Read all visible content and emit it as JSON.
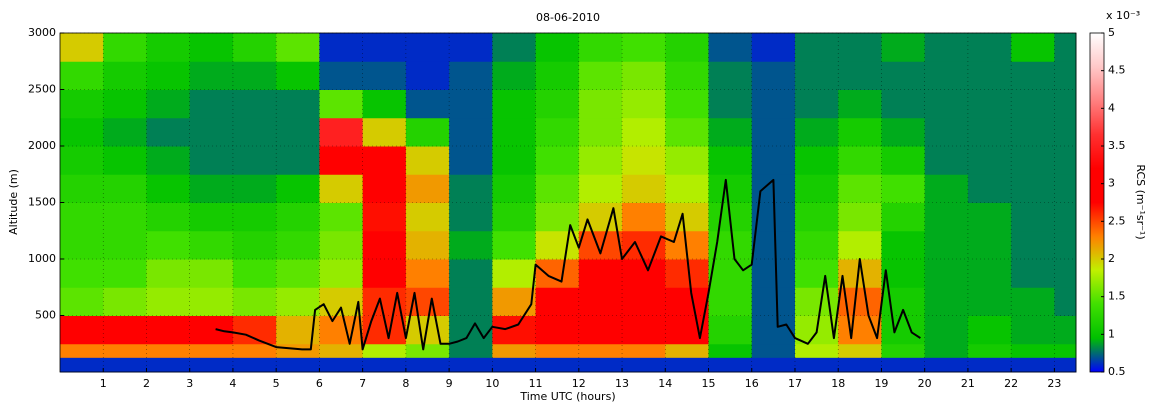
{
  "chart_data": {
    "type": "heatmap",
    "title": "08-06-2010",
    "x_label": "Time UTC (hours)",
    "y_label": "Altitude (m)",
    "xlim": [
      0,
      23.5
    ],
    "ylim": [
      0,
      3000
    ],
    "xticks": [
      1,
      2,
      3,
      4,
      5,
      6,
      7,
      8,
      9,
      10,
      11,
      12,
      13,
      14,
      15,
      16,
      17,
      18,
      19,
      20,
      21,
      22,
      23
    ],
    "yticks": [
      500,
      1000,
      1500,
      2000,
      2500,
      3000
    ],
    "grid": true,
    "x_edges": [
      0,
      1,
      2,
      3,
      4,
      5,
      6,
      7,
      8,
      9,
      10,
      11,
      12,
      13,
      14,
      15,
      16,
      17,
      18,
      19,
      20,
      21,
      22,
      23,
      23.5
    ],
    "y_edges": [
      0,
      130,
      250,
      500,
      750,
      1000,
      1250,
      1500,
      1750,
      2000,
      2250,
      2500,
      2750,
      3000
    ],
    "z": [
      [
        0.6,
        2.3,
        2.8,
        1.5,
        1.4,
        1.3,
        1.3,
        1.2,
        1.1,
        1.0,
        1.1,
        1.3,
        2.0
      ],
      [
        0.6,
        2.3,
        2.8,
        1.6,
        1.4,
        1.3,
        1.3,
        1.2,
        1.0,
        0.9,
        1.0,
        1.1,
        1.3
      ],
      [
        0.6,
        2.3,
        2.8,
        1.7,
        1.6,
        1.4,
        1.2,
        1.0,
        0.9,
        0.8,
        0.9,
        1.0,
        1.1
      ],
      [
        0.6,
        2.3,
        2.8,
        1.7,
        1.6,
        1.3,
        1.1,
        0.9,
        0.8,
        0.8,
        0.8,
        0.9,
        1.0
      ],
      [
        0.6,
        2.3,
        2.6,
        1.6,
        1.4,
        1.2,
        1.1,
        0.9,
        0.8,
        0.8,
        0.8,
        0.9,
        1.2
      ],
      [
        0.6,
        2.2,
        2.1,
        1.7,
        1.5,
        1.3,
        1.2,
        1.0,
        0.8,
        0.8,
        0.8,
        1.0,
        1.5
      ],
      [
        0.6,
        2.1,
        2.3,
        2.0,
        1.7,
        1.6,
        1.5,
        2.0,
        3.0,
        3.5,
        1.5,
        0.7,
        0.6
      ],
      [
        0.6,
        1.8,
        2.6,
        2.6,
        2.8,
        2.8,
        2.7,
        3.0,
        3.2,
        2.0,
        1.0,
        0.7,
        0.6
      ],
      [
        0.6,
        1.6,
        2.0,
        2.5,
        2.3,
        2.1,
        2.0,
        2.2,
        2.0,
        1.2,
        0.7,
        0.6,
        0.6
      ],
      [
        0.6,
        0.8,
        0.8,
        0.8,
        0.8,
        0.9,
        0.8,
        0.8,
        0.7,
        0.7,
        0.7,
        0.7,
        0.6
      ],
      [
        0.6,
        2.2,
        2.7,
        2.2,
        1.8,
        1.4,
        1.2,
        1.1,
        1.0,
        1.0,
        1.0,
        0.9,
        0.8
      ],
      [
        0.6,
        2.3,
        3.0,
        2.8,
        2.4,
        1.9,
        1.6,
        1.5,
        1.4,
        1.3,
        1.2,
        1.1,
        1.0
      ],
      [
        0.6,
        2.3,
        3.0,
        3.0,
        2.8,
        2.5,
        2.0,
        1.8,
        1.7,
        1.6,
        1.6,
        1.5,
        1.3
      ],
      [
        0.6,
        2.3,
        3.0,
        3.0,
        2.9,
        2.6,
        2.3,
        2.0,
        1.9,
        1.8,
        1.7,
        1.6,
        1.4
      ],
      [
        0.6,
        2.1,
        2.8,
        2.8,
        2.6,
        2.3,
        2.0,
        1.8,
        1.7,
        1.5,
        1.4,
        1.3,
        1.2
      ],
      [
        0.6,
        1.0,
        1.2,
        1.3,
        1.3,
        1.3,
        1.2,
        1.1,
        1.0,
        0.9,
        0.8,
        0.8,
        0.7
      ],
      [
        0.6,
        0.7,
        0.7,
        0.7,
        0.7,
        0.7,
        0.7,
        0.7,
        0.7,
        0.7,
        0.7,
        0.7,
        0.6
      ],
      [
        0.6,
        1.8,
        1.7,
        1.6,
        1.4,
        1.3,
        1.2,
        1.1,
        1.0,
        0.9,
        0.8,
        0.8,
        0.8
      ],
      [
        0.6,
        2.0,
        2.3,
        2.4,
        2.1,
        1.8,
        1.6,
        1.5,
        1.3,
        1.1,
        0.9,
        0.8,
        0.8
      ],
      [
        0.6,
        1.2,
        1.1,
        1.1,
        1.0,
        1.0,
        1.2,
        1.4,
        1.1,
        0.9,
        0.8,
        0.8,
        0.9
      ],
      [
        0.6,
        0.9,
        0.9,
        0.9,
        0.9,
        0.9,
        0.9,
        0.9,
        0.8,
        0.8,
        0.8,
        0.8,
        0.8
      ],
      [
        0.6,
        1.1,
        1.0,
        0.9,
        0.9,
        0.9,
        0.9,
        0.8,
        0.8,
        0.8,
        0.8,
        0.8,
        0.8
      ],
      [
        0.6,
        1.0,
        0.9,
        0.9,
        0.8,
        0.8,
        0.8,
        0.8,
        0.8,
        0.8,
        0.8,
        0.8,
        1.0
      ],
      [
        0.6,
        1.0,
        0.9,
        0.8,
        0.8,
        0.8,
        0.8,
        0.8,
        0.8,
        0.8,
        0.8,
        0.8,
        0.8
      ]
    ],
    "colormap": [
      "#0000ff",
      "#00c000",
      "#40e000",
      "#c0f000",
      "#ff8000",
      "#ff0000",
      "#ff0000",
      "#ff3030",
      "#ff8080",
      "#ffc8c8",
      "#ffffff"
    ],
    "colorbar": {
      "label": "RCS  (m⁻¹sr⁻¹)",
      "multiplier": "x 10⁻³",
      "ylim": [
        0.5,
        5
      ],
      "ticks": [
        0.5,
        1,
        1.5,
        2,
        2.5,
        3,
        3.5,
        4,
        4.5,
        5
      ]
    },
    "line": {
      "color": "#000000",
      "x": [
        3.6,
        3.8,
        4.0,
        4.3,
        4.6,
        5.0,
        5.3,
        5.6,
        5.8,
        5.9,
        6.1,
        6.3,
        6.5,
        6.7,
        6.9,
        7.0,
        7.2,
        7.4,
        7.6,
        7.8,
        8.0,
        8.2,
        8.4,
        8.6,
        8.8,
        9.0,
        9.2,
        9.4,
        9.6,
        9.8,
        10.0,
        10.3,
        10.6,
        10.9,
        11.0,
        11.3,
        11.6,
        11.8,
        12.0,
        12.2,
        12.5,
        12.8,
        13.0,
        13.3,
        13.6,
        13.9,
        14.2,
        14.4,
        14.6,
        14.8,
        15.0,
        15.2,
        15.4,
        15.6,
        15.8,
        16.0,
        16.2,
        16.5,
        16.6,
        16.8,
        17.0,
        17.3,
        17.5,
        17.7,
        17.9,
        18.1,
        18.3,
        18.5,
        18.7,
        18.9,
        19.1,
        19.3,
        19.5,
        19.7,
        19.9
      ],
      "y": [
        380,
        360,
        350,
        330,
        280,
        220,
        210,
        200,
        200,
        550,
        600,
        450,
        570,
        250,
        620,
        200,
        450,
        650,
        300,
        700,
        300,
        700,
        200,
        650,
        250,
        250,
        270,
        300,
        430,
        300,
        400,
        380,
        420,
        600,
        950,
        850,
        800,
        1300,
        1100,
        1350,
        1050,
        1450,
        1000,
        1150,
        900,
        1200,
        1150,
        1400,
        700,
        300,
        700,
        1150,
        1700,
        1000,
        900,
        950,
        1600,
        1700,
        400,
        420,
        300,
        250,
        350,
        850,
        300,
        850,
        300,
        1000,
        500,
        300,
        900,
        350,
        550,
        350,
        300
      ]
    }
  }
}
